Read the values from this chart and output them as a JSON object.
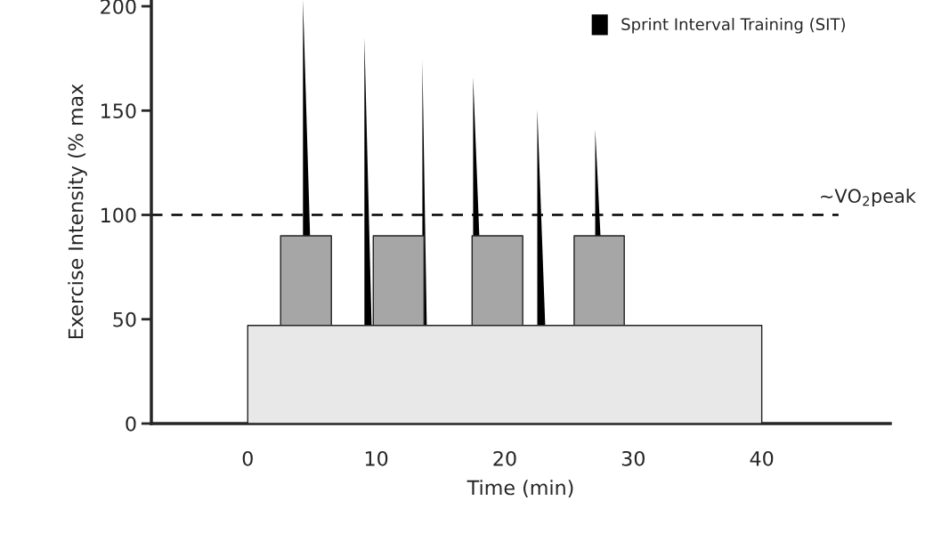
{
  "chart_data": {
    "type": "area",
    "xlabel": "Time (min)",
    "ylabel": "Exercise Intensity (% max",
    "xlim": [
      -7.5,
      50
    ],
    "ylim": [
      0,
      203
    ],
    "xticks": [
      0,
      10,
      20,
      30,
      40
    ],
    "yticks": [
      0,
      50,
      100,
      150,
      200
    ],
    "series": [
      {
        "color": "#e8e8e8",
        "x": [
          0,
          40
        ],
        "values": [
          47,
          47
        ]
      },
      {
        "color": "#a6a6a6",
        "x": [
          2.56,
          6.51,
          null,
          9.77,
          13.72,
          null,
          17.46,
          21.4,
          null,
          25.4,
          29.3
        ],
        "values": [
          90,
          90,
          null,
          90,
          90,
          null,
          90,
          90,
          null,
          90,
          90
        ]
      },
      {
        "name": "Sprint Interval Training (SIT)",
        "color": "#000000",
        "x": [
          4.3,
          4.3,
          4.85,
          null,
          9.08,
          9.08,
          9.64,
          null,
          13.59,
          13.59,
          13.93,
          null,
          17.54,
          17.54,
          18.02,
          null,
          22.53,
          22.53,
          23.15,
          null,
          27.04,
          27.04,
          27.45
        ],
        "values": [
          90,
          203,
          90,
          null,
          47,
          185,
          47,
          null,
          47,
          175,
          47,
          null,
          90,
          166,
          90,
          null,
          47,
          151,
          47,
          null,
          90,
          141,
          90
        ]
      }
    ],
    "ref_lines": [
      {
        "axis": "y",
        "value": 100,
        "label": "~VO$_{2}$peak",
        "line_style": "dashed",
        "color": "#000000"
      }
    ],
    "legend": "top right",
    "grid": false
  }
}
